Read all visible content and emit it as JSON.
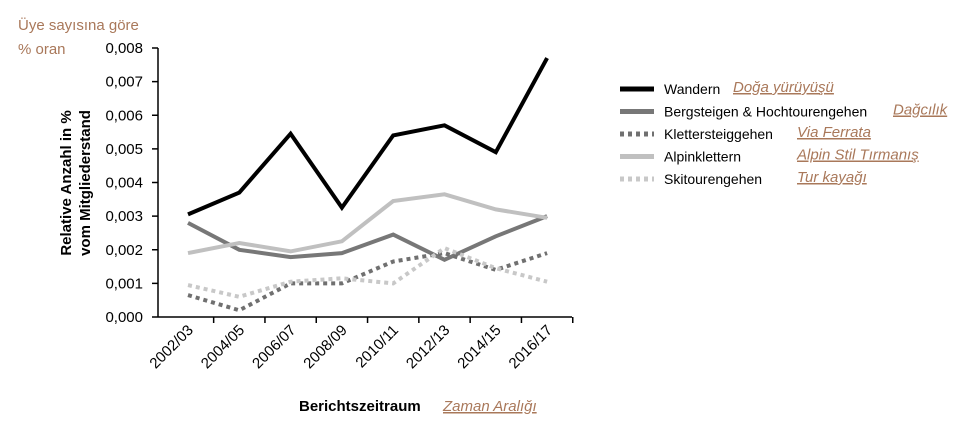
{
  "chart_data": {
    "type": "line",
    "categories": [
      "2002/03",
      "2004/05",
      "2006/07",
      "2008/09",
      "2010/11",
      "2012/13",
      "2014/15",
      "2016/17"
    ],
    "series": [
      {
        "name": "Wandern",
        "translation": "Doğa yürüyüşü",
        "color": "#000000",
        "dash": "solid",
        "values": [
          0.00305,
          0.0037,
          0.00545,
          0.00325,
          0.0054,
          0.0057,
          0.0049,
          0.0077
        ]
      },
      {
        "name": "Bergsteigen & Hochtourengehen",
        "translation": "Dağcılık",
        "color": "#777777",
        "dash": "solid",
        "values": [
          0.0028,
          0.002,
          0.00178,
          0.0019,
          0.00245,
          0.0017,
          0.0024,
          0.003
        ]
      },
      {
        "name": "Klettersteiggehen",
        "translation": "Via Ferrata",
        "color": "#707070",
        "dash": "dotted",
        "values": [
          0.00065,
          0.0002,
          0.001,
          0.001,
          0.00165,
          0.0019,
          0.0014,
          0.0019
        ]
      },
      {
        "name": "Alpinklettern",
        "translation": "Alpin Stil Tırmanış",
        "color": "#c0c0c0",
        "dash": "solid",
        "values": [
          0.0019,
          0.0022,
          0.00195,
          0.00225,
          0.00345,
          0.00365,
          0.0032,
          0.00295
        ]
      },
      {
        "name": "Skitourengehen",
        "translation": "Tur kayağı",
        "color": "#c8c8c8",
        "dash": "dotted",
        "values": [
          0.00095,
          0.0006,
          0.00105,
          0.00115,
          0.001,
          0.00205,
          0.00145,
          0.00105
        ]
      }
    ],
    "yticks": [
      "0,000",
      "0,001",
      "0,002",
      "0,003",
      "0,004",
      "0,005",
      "0,006",
      "0,007",
      "0,008"
    ],
    "ylim": [
      0,
      0.008
    ],
    "ylabel_line1": "Relative Anzahl in %",
    "ylabel_line2": "vom Mitgliederstand",
    "xlabel": "Berichtszeitraum",
    "xlabel_translation": "Zaman Aralığı",
    "ylabel_translation_line1": "Üye sayısına göre",
    "ylabel_translation_line2": "% oran",
    "legend_position": "right"
  }
}
